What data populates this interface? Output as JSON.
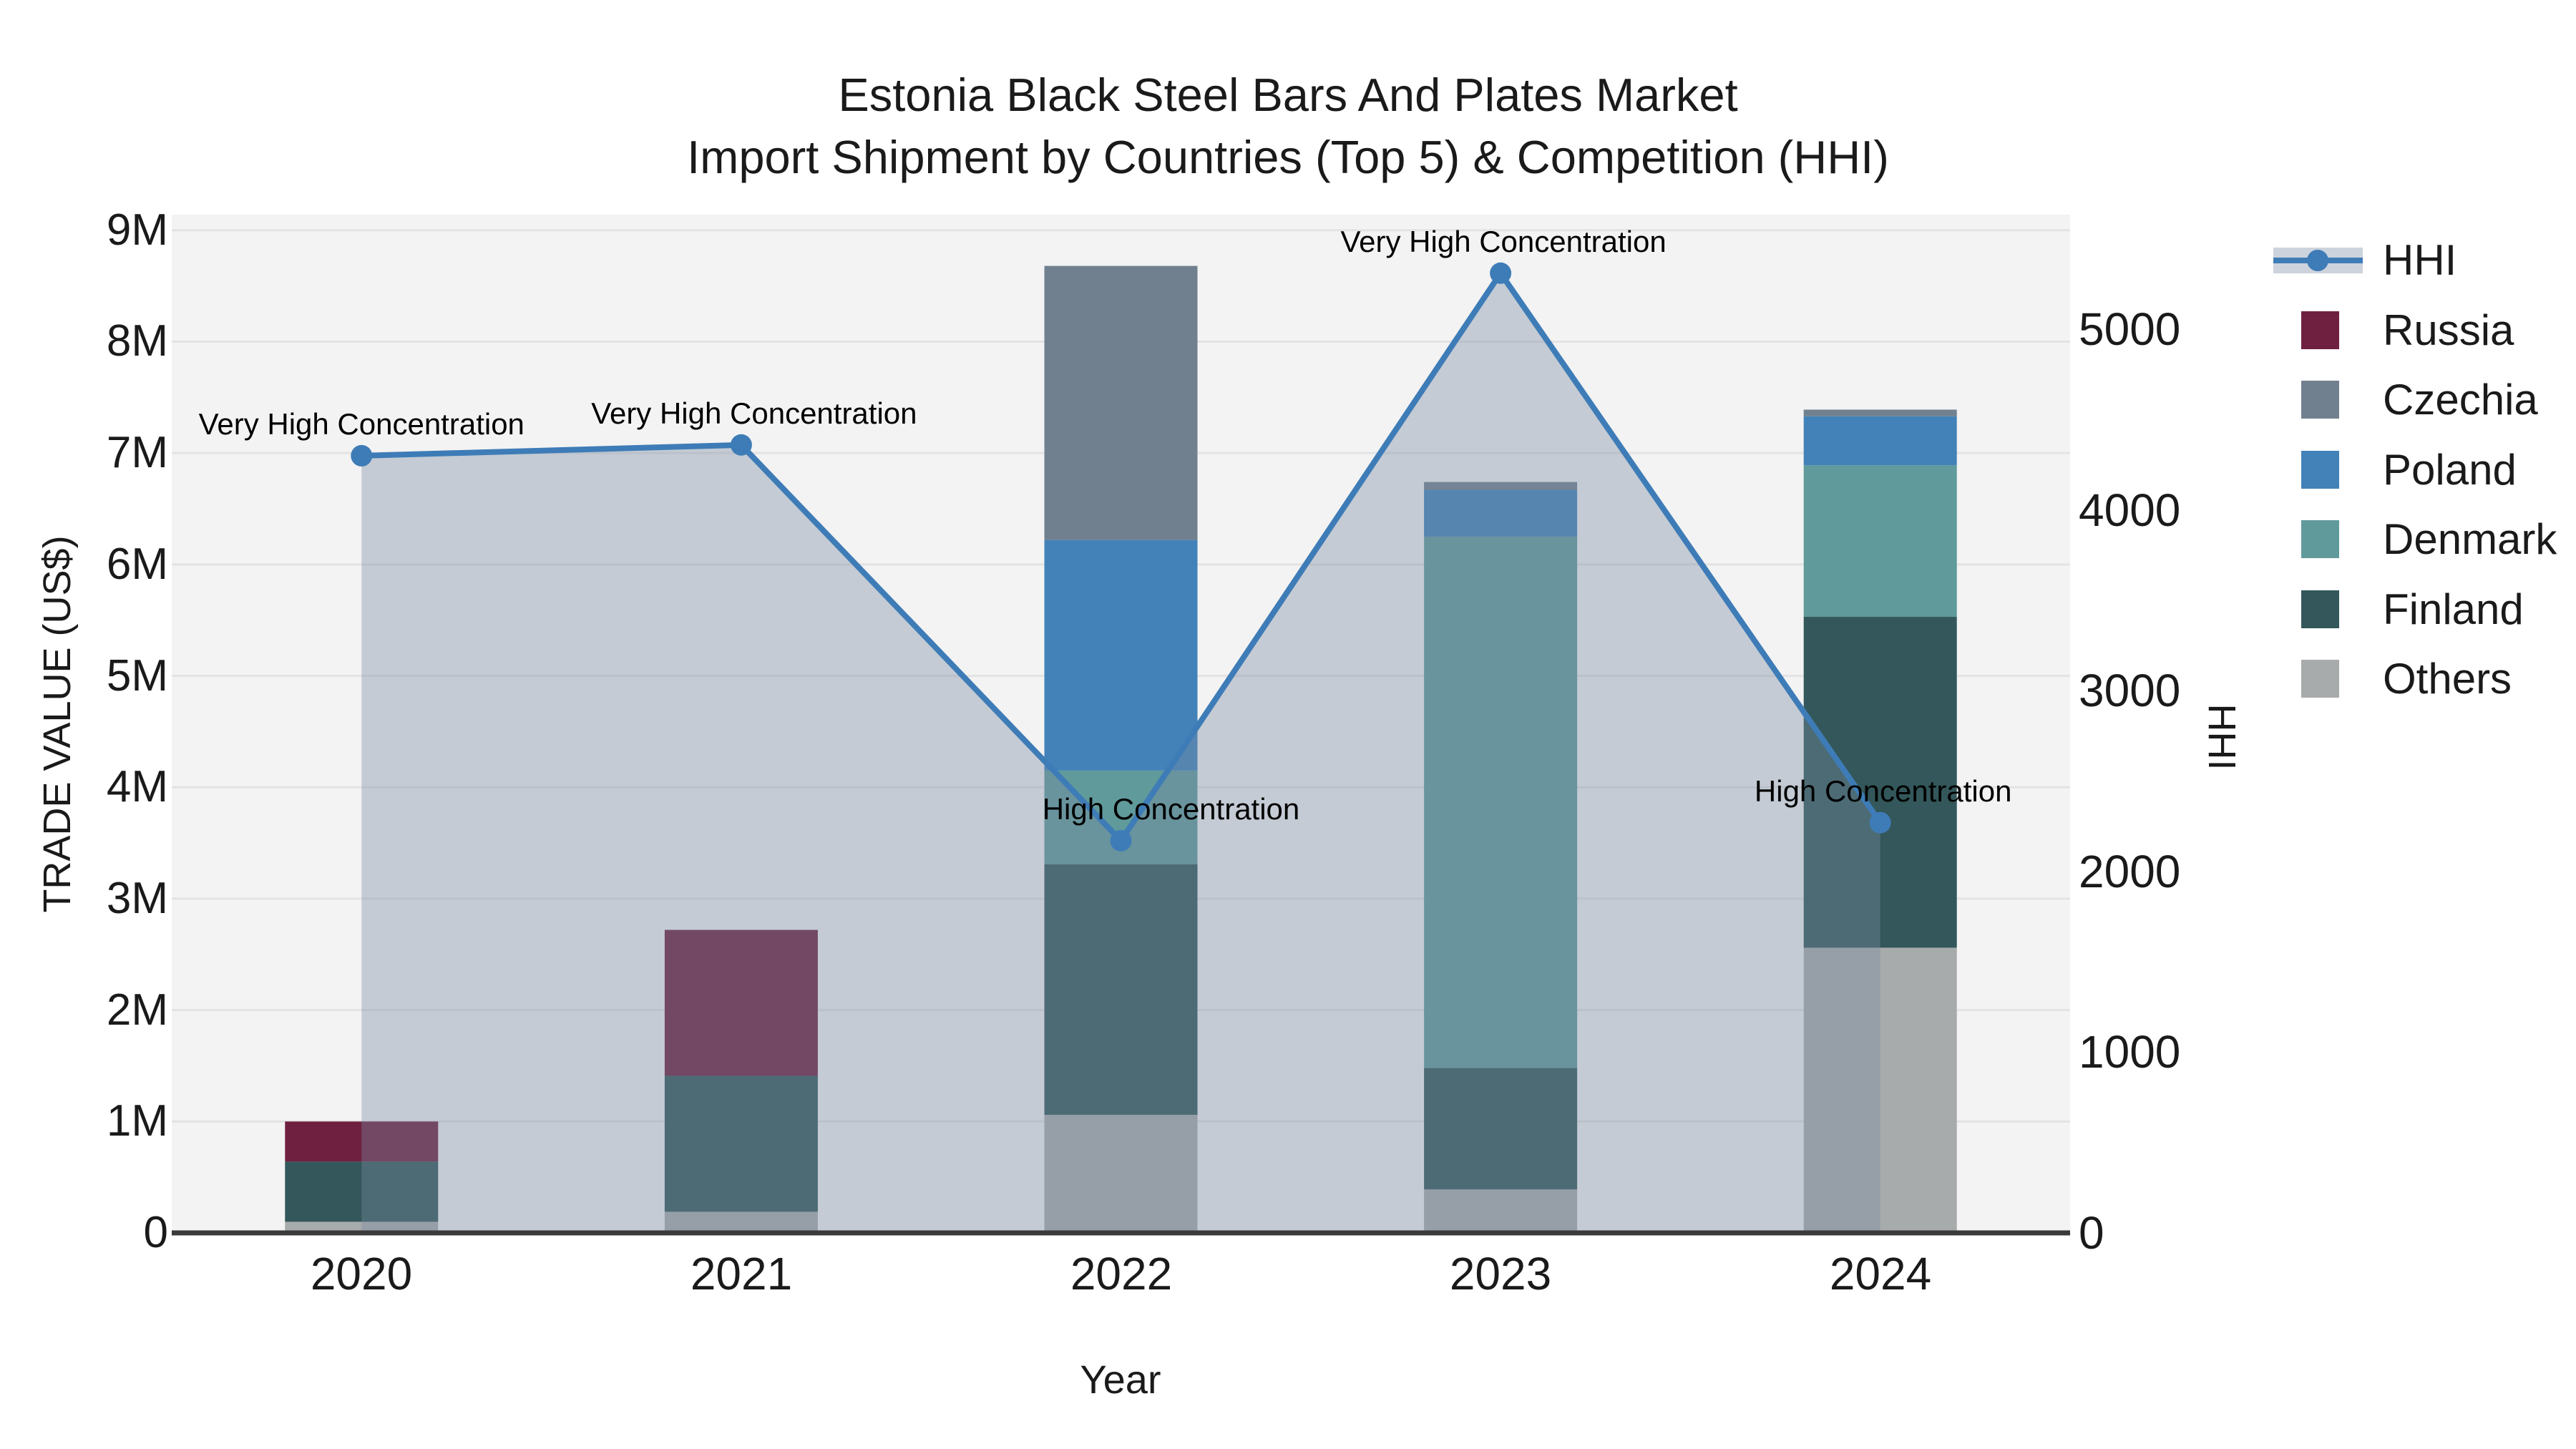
{
  "title": {
    "line1": "Estonia Black Steel Bars And Plates Market",
    "line2": "Import Shipment by Countries (Top 5) & Competition (HHI)"
  },
  "axes": {
    "x_label": "Year",
    "y_left_label": "TRADE VALUE (US$)",
    "y_right_label": "HHI",
    "y_left_ticks": [
      {
        "value_m": 0,
        "label": "0"
      },
      {
        "value_m": 1,
        "label": "1M"
      },
      {
        "value_m": 2,
        "label": "2M"
      },
      {
        "value_m": 3,
        "label": "3M"
      },
      {
        "value_m": 4,
        "label": "4M"
      },
      {
        "value_m": 5,
        "label": "5M"
      },
      {
        "value_m": 6,
        "label": "6M"
      },
      {
        "value_m": 7,
        "label": "7M"
      },
      {
        "value_m": 8,
        "label": "8M"
      },
      {
        "value_m": 9,
        "label": "9M"
      }
    ],
    "y_left_max_m": 9.14,
    "y_right_ticks": [
      {
        "value": 0,
        "label": "0"
      },
      {
        "value": 1000,
        "label": "1000"
      },
      {
        "value": 2000,
        "label": "2000"
      },
      {
        "value": 3000,
        "label": "3000"
      },
      {
        "value": 4000,
        "label": "4000"
      },
      {
        "value": 5000,
        "label": "5000"
      }
    ],
    "y_right_max": 5634
  },
  "chart_data": {
    "type": "bar+line",
    "categories": [
      "2020",
      "2021",
      "2022",
      "2023",
      "2024"
    ],
    "bar_unit": "million US$",
    "series": [
      {
        "name": "Russia",
        "values_m": [
          0.36,
          1.31,
          0,
          0,
          0
        ]
      },
      {
        "name": "Czechia",
        "values_m": [
          0,
          0,
          2.46,
          0.07,
          0.06
        ]
      },
      {
        "name": "Poland",
        "values_m": [
          0,
          0,
          2.07,
          0.42,
          0.44
        ]
      },
      {
        "name": "Denmark",
        "values_m": [
          0,
          0,
          0.84,
          4.77,
          1.36
        ]
      },
      {
        "name": "Finland",
        "values_m": [
          0.54,
          1.22,
          2.25,
          1.09,
          2.97
        ]
      },
      {
        "name": "Others",
        "values_m": [
          0.1,
          0.19,
          1.06,
          0.39,
          2.56
        ]
      }
    ],
    "stack_order_bottom_to_top": [
      "Others",
      "Finland",
      "Denmark",
      "Poland",
      "Czechia",
      "Russia"
    ],
    "line": {
      "name": "HHI",
      "values": [
        4300,
        4360,
        2170,
        5310,
        2270
      ]
    },
    "annotations": [
      {
        "category": "2020",
        "text": "Very High Concentration",
        "x_offset": 0
      },
      {
        "category": "2021",
        "text": "Very High Concentration",
        "x_offset": 18
      },
      {
        "category": "2022",
        "text": "High Concentration",
        "x_offset": 70
      },
      {
        "category": "2023",
        "text": "Very High Concentration",
        "x_offset": 4
      },
      {
        "category": "2024",
        "text": "High Concentration",
        "x_offset": 4
      }
    ],
    "legend_position": "right",
    "grid": "horizontal"
  },
  "legend": {
    "items": [
      {
        "label": "HHI",
        "type": "line"
      },
      {
        "label": "Russia",
        "type": "swatch"
      },
      {
        "label": "Czechia",
        "type": "swatch"
      },
      {
        "label": "Poland",
        "type": "swatch"
      },
      {
        "label": "Denmark",
        "type": "swatch"
      },
      {
        "label": "Finland",
        "type": "swatch"
      },
      {
        "label": "Others",
        "type": "swatch"
      }
    ]
  },
  "colors": {
    "Russia": "#6F2040",
    "Czechia": "#71808F",
    "Poland": "#4282B8",
    "Denmark": "#609A9B",
    "Finland": "#33575A",
    "Others": "#A8ABAB",
    "hhi_line": "#3E7CB7",
    "hhi_area": "rgba(122,139,162,0.38)",
    "plot_background": "#F3F3F3",
    "gridline": "#E3E3E3",
    "axis_line": "#3A3A3A"
  }
}
